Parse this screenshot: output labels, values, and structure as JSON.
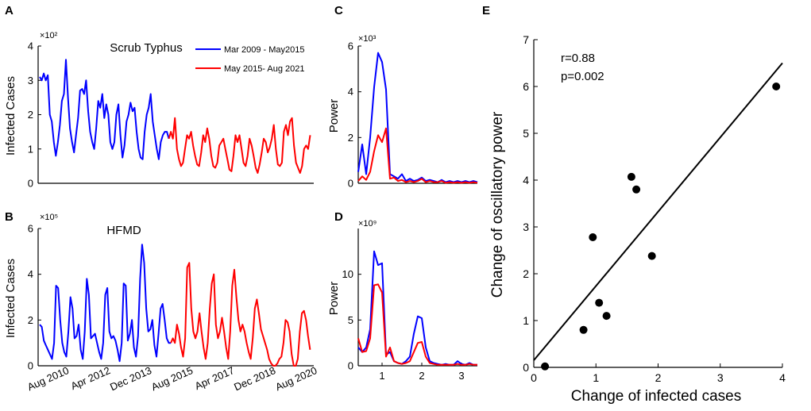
{
  "chart_data": [
    {
      "panel": "A",
      "type": "line",
      "title": "Scrub Typhus",
      "ylabel": "Infected Cases",
      "yscale_label": "×10²",
      "ylim": [
        0,
        4
      ],
      "yticks": [
        0,
        1,
        2,
        3,
        4
      ],
      "legend": [
        "Mar 2009 - May2015",
        "May 2015- Aug 2021"
      ],
      "series": [
        {
          "name": "Mar 2009 - May2015",
          "color": "#0000ff",
          "values": [
            3.1,
            3.0,
            3.2,
            3.0,
            3.15,
            2.0,
            1.8,
            1.2,
            0.8,
            1.2,
            1.7,
            2.4,
            2.6,
            3.6,
            2.5,
            1.6,
            1.2,
            0.9,
            1.4,
            1.9,
            2.7,
            2.75,
            2.6,
            3.0,
            2.1,
            1.5,
            1.2,
            1.0,
            1.6,
            2.4,
            2.2,
            2.6,
            1.9,
            2.3,
            2.0,
            1.2,
            1.0,
            1.2,
            2.0,
            2.3,
            1.4,
            0.75,
            1.1,
            1.8,
            2.0,
            2.35,
            2.1,
            2.2,
            1.5,
            1.0,
            0.75,
            0.7,
            1.5,
            2.0,
            2.2,
            2.6,
            1.8,
            1.4,
            1.0,
            0.7,
            1.2,
            1.4,
            1.5,
            1.5,
            1.3
          ]
        },
        {
          "name": "May 2015- Aug 2021",
          "color": "#ff0000",
          "values": [
            1.3,
            1.5,
            1.3,
            1.9,
            1.0,
            0.7,
            0.5,
            0.6,
            1.0,
            1.4,
            1.3,
            1.5,
            1.1,
            0.8,
            0.55,
            0.5,
            0.9,
            1.4,
            1.2,
            1.6,
            1.3,
            0.8,
            0.5,
            0.45,
            0.6,
            1.1,
            1.2,
            1.3,
            1.0,
            0.7,
            0.4,
            0.35,
            0.8,
            1.4,
            1.2,
            1.4,
            1.0,
            0.6,
            0.5,
            0.8,
            1.3,
            1.1,
            0.8,
            0.45,
            0.3,
            0.55,
            0.9,
            1.3,
            1.2,
            0.9,
            1.05,
            1.3,
            1.7,
            1.0,
            0.55,
            0.5,
            0.6,
            1.5,
            1.7,
            1.4,
            1.8,
            1.9,
            1.1,
            0.6,
            0.45,
            0.3,
            0.5,
            1.0,
            1.1,
            1.0,
            1.4
          ]
        }
      ]
    },
    {
      "panel": "B",
      "type": "line",
      "title": "HFMD",
      "ylabel": "Infected Cases",
      "yscale_label": "×10⁵",
      "ylim": [
        0,
        6
      ],
      "yticks": [
        0,
        2,
        4,
        6
      ],
      "xtick_labels": [
        "Aug 2010",
        "Apr 2012",
        "Dec 2013",
        "Aug 2015",
        "Apr 2017",
        "Dec 2018",
        "Aug 2020"
      ],
      "series": [
        {
          "name": "Mar 2009 - May2015",
          "color": "#0000ff",
          "values": [
            1.8,
            1.7,
            1.1,
            0.9,
            0.7,
            0.5,
            0.3,
            1.0,
            3.5,
            3.4,
            2.0,
            1.0,
            0.6,
            0.4,
            1.5,
            3.0,
            2.5,
            1.2,
            1.3,
            1.8,
            0.7,
            0.3,
            1.5,
            3.8,
            3.1,
            1.2,
            1.3,
            1.4,
            1.0,
            0.6,
            0.3,
            1.0,
            3.1,
            3.4,
            1.5,
            1.2,
            1.3,
            1.1,
            0.7,
            0.2,
            1.0,
            3.6,
            3.5,
            1.1,
            1.4,
            2.0,
            0.8,
            0.4,
            1.3,
            3.8,
            5.3,
            4.5,
            2.5,
            1.5,
            1.6,
            2.0,
            0.9,
            0.4,
            1.4,
            2.5,
            2.7,
            2.0,
            1.2,
            1.0,
            1.0
          ]
        },
        {
          "name": "May 2015- Aug 2021",
          "color": "#ff0000",
          "values": [
            1.0,
            1.2,
            1.0,
            1.8,
            1.4,
            0.8,
            0.4,
            1.2,
            4.3,
            4.5,
            2.5,
            1.5,
            1.2,
            1.5,
            2.3,
            1.5,
            0.8,
            0.3,
            1.0,
            2.5,
            3.6,
            4.0,
            1.8,
            1.2,
            1.5,
            2.1,
            1.5,
            0.8,
            0.3,
            1.5,
            3.5,
            4.2,
            3.0,
            2.0,
            1.5,
            1.8,
            1.5,
            1.0,
            0.6,
            0.3,
            1.2,
            2.5,
            2.9,
            2.3,
            1.6,
            1.3,
            1.0,
            0.7,
            0.3,
            0.1,
            0.0,
            0.0,
            0.1,
            0.3,
            0.4,
            1.0,
            2.0,
            1.9,
            1.5,
            0.5,
            0.0,
            0.0,
            0.3,
            1.5,
            2.3,
            2.4,
            2.0,
            1.3,
            0.7
          ]
        }
      ]
    },
    {
      "panel": "C",
      "type": "line",
      "ylabel": "Power",
      "yscale_label": "×10³",
      "ylim": [
        0,
        6
      ],
      "yticks": [
        0,
        2,
        4,
        6
      ],
      "xlim": [
        0.4,
        3.4
      ],
      "series": [
        {
          "name": "Mar 2009 - May2015",
          "color": "#0000ff",
          "x": [
            0.4,
            0.5,
            0.6,
            0.7,
            0.8,
            0.9,
            1.0,
            1.1,
            1.2,
            1.3,
            1.4,
            1.5,
            1.6,
            1.7,
            1.8,
            1.9,
            2.0,
            2.1,
            2.2,
            2.3,
            2.4,
            2.5,
            2.6,
            2.7,
            2.8,
            2.9,
            3.0,
            3.1,
            3.2,
            3.3,
            3.4
          ],
          "y": [
            0.5,
            1.7,
            0.4,
            2.0,
            4.2,
            5.7,
            5.3,
            4.1,
            0.4,
            0.3,
            0.2,
            0.4,
            0.1,
            0.2,
            0.1,
            0.15,
            0.25,
            0.1,
            0.15,
            0.1,
            0.05,
            0.15,
            0.05,
            0.1,
            0.05,
            0.1,
            0.05,
            0.1,
            0.05,
            0.1,
            0.05
          ]
        },
        {
          "name": "May 2015- Aug 2021",
          "color": "#ff0000",
          "x": [
            0.4,
            0.5,
            0.6,
            0.7,
            0.8,
            0.9,
            1.0,
            1.1,
            1.2,
            1.3,
            1.4,
            1.5,
            1.6,
            1.7,
            1.8,
            1.9,
            2.0,
            2.1,
            2.2,
            2.3,
            2.4,
            2.5,
            2.6,
            2.7,
            2.8,
            2.9,
            3.0,
            3.1,
            3.2,
            3.3,
            3.4
          ],
          "y": [
            0.1,
            0.3,
            0.15,
            0.5,
            1.4,
            2.1,
            1.8,
            2.4,
            0.2,
            0.25,
            0.1,
            0.15,
            0.05,
            0.1,
            0.05,
            0.1,
            0.2,
            0.05,
            0.1,
            0.05,
            0.05,
            0.1,
            0.02,
            0.05,
            0.02,
            0.05,
            0.02,
            0.05,
            0.02,
            0.05,
            0.02
          ]
        }
      ]
    },
    {
      "panel": "D",
      "type": "line",
      "ylabel": "Power",
      "yscale_label": "×10⁹",
      "ylim": [
        0,
        15
      ],
      "yticks": [
        0,
        5,
        10
      ],
      "xlim": [
        0.4,
        3.4
      ],
      "xticks": [
        1,
        2,
        3
      ],
      "series": [
        {
          "name": "Mar 2009 - May2015",
          "color": "#0000ff",
          "x": [
            0.4,
            0.5,
            0.6,
            0.7,
            0.8,
            0.9,
            1.0,
            1.1,
            1.2,
            1.3,
            1.4,
            1.5,
            1.6,
            1.7,
            1.8,
            1.9,
            2.0,
            2.1,
            2.2,
            2.3,
            2.4,
            2.5,
            2.6,
            2.7,
            2.8,
            2.9,
            3.0,
            3.1,
            3.2,
            3.3,
            3.4
          ],
          "y": [
            2.0,
            1.5,
            2.0,
            4.0,
            12.5,
            11.0,
            11.2,
            1.2,
            1.5,
            0.5,
            0.3,
            0.2,
            0.5,
            1.0,
            3.5,
            5.4,
            5.2,
            2.0,
            0.5,
            0.3,
            0.2,
            0.1,
            0.2,
            0.1,
            0.1,
            0.5,
            0.2,
            0.1,
            0.3,
            0.1,
            0.1
          ]
        },
        {
          "name": "May 2015- Aug 2021",
          "color": "#ff0000",
          "x": [
            0.4,
            0.5,
            0.6,
            0.7,
            0.8,
            0.9,
            1.0,
            1.1,
            1.2,
            1.3,
            1.4,
            1.5,
            1.6,
            1.7,
            1.8,
            1.9,
            2.0,
            2.1,
            2.2,
            2.3,
            2.4,
            2.5,
            2.6,
            2.7,
            2.8,
            2.9,
            3.0,
            3.1,
            3.2,
            3.3,
            3.4
          ],
          "y": [
            3.0,
            1.5,
            1.6,
            3.0,
            8.8,
            8.9,
            8.0,
            1.0,
            2.0,
            0.5,
            0.3,
            0.2,
            0.3,
            0.5,
            1.5,
            2.5,
            2.6,
            1.0,
            0.3,
            0.2,
            0.1,
            0.1,
            0.1,
            0.1,
            0.1,
            0.2,
            0.1,
            0.1,
            0.2,
            0.1,
            0.1
          ]
        }
      ]
    },
    {
      "panel": "E",
      "type": "scatter",
      "xlabel": "Change of infected cases",
      "ylabel": "Change of oscillatory power",
      "xlim": [
        0,
        4
      ],
      "ylim": [
        0,
        7
      ],
      "xticks": [
        0,
        1,
        2,
        3,
        4
      ],
      "yticks": [
        0,
        1,
        2,
        3,
        4,
        5,
        6,
        7
      ],
      "annotation": [
        "r=0.88",
        "p=0.002"
      ],
      "points": [
        {
          "x": 0.18,
          "y": 0.02
        },
        {
          "x": 0.8,
          "y": 0.8
        },
        {
          "x": 0.95,
          "y": 2.78
        },
        {
          "x": 1.05,
          "y": 1.38
        },
        {
          "x": 1.17,
          "y": 1.1
        },
        {
          "x": 1.57,
          "y": 4.07
        },
        {
          "x": 1.65,
          "y": 3.8
        },
        {
          "x": 1.9,
          "y": 2.38
        },
        {
          "x": 3.9,
          "y": 6.0
        }
      ],
      "fit_line": {
        "x": [
          0,
          4
        ],
        "y": [
          0.15,
          6.5
        ]
      }
    }
  ]
}
